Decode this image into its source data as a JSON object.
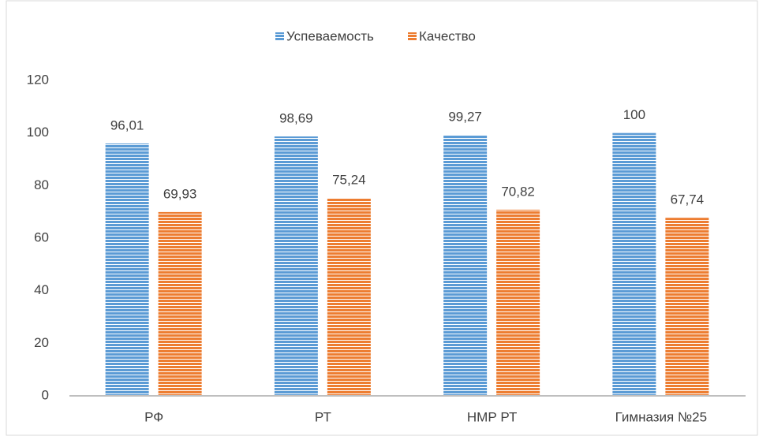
{
  "chart_data": {
    "type": "bar",
    "categories": [
      "РФ",
      "РТ",
      "НМР РТ",
      "Гимназия №25"
    ],
    "series": [
      {
        "name": "Успеваемость",
        "color": "#5b9bd5",
        "values": [
          96.01,
          98.69,
          99.27,
          100
        ],
        "value_labels": [
          "96,01",
          "98,69",
          "99,27",
          "100"
        ]
      },
      {
        "name": "Качество",
        "color": "#ed7d31",
        "values": [
          69.93,
          75.24,
          70.82,
          67.74
        ],
        "value_labels": [
          "69,93",
          "75,24",
          "70,82",
          "67,74"
        ]
      }
    ],
    "ylim": [
      0,
      120
    ],
    "yticks": [
      0,
      20,
      40,
      60,
      80,
      100,
      120
    ],
    "grid": false,
    "legend": "top"
  }
}
